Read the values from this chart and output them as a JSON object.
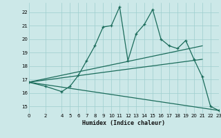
{
  "xlabel": "Humidex (Indice chaleur)",
  "bg_color": "#cce8e8",
  "grid_color": "#9ecece",
  "line_color": "#1a6b5a",
  "xlim": [
    0,
    23
  ],
  "ylim": [
    14.5,
    22.7
  ],
  "xticks": [
    0,
    2,
    4,
    5,
    6,
    7,
    8,
    9,
    10,
    11,
    12,
    13,
    14,
    15,
    16,
    17,
    18,
    19,
    20,
    21,
    22,
    23
  ],
  "yticks": [
    15,
    16,
    17,
    18,
    19,
    20,
    21,
    22
  ],
  "series_main": {
    "x": [
      0,
      2,
      4,
      5,
      6,
      7,
      8,
      9,
      10,
      11,
      12,
      13,
      14,
      15,
      16,
      17,
      18,
      19,
      20,
      21,
      22,
      23
    ],
    "y": [
      16.8,
      16.5,
      16.1,
      16.5,
      17.3,
      18.4,
      19.5,
      20.9,
      21.0,
      22.4,
      18.4,
      20.4,
      21.1,
      22.2,
      20.0,
      19.5,
      19.3,
      19.9,
      18.5,
      17.2,
      15.0,
      14.7
    ]
  },
  "series_lines": [
    {
      "x": [
        0,
        21
      ],
      "y": [
        16.8,
        19.5
      ]
    },
    {
      "x": [
        0,
        21
      ],
      "y": [
        16.8,
        18.5
      ]
    },
    {
      "x": [
        0,
        23
      ],
      "y": [
        16.8,
        14.7
      ]
    }
  ]
}
